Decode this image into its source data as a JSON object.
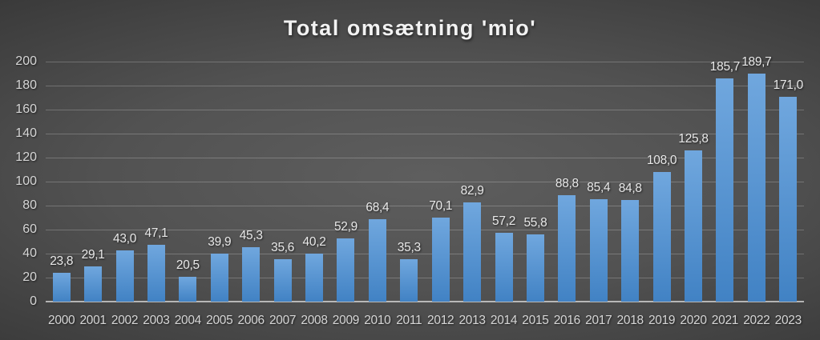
{
  "chart_data": {
    "type": "bar",
    "title": "Total omsætning 'mio'",
    "categories": [
      "2000",
      "2001",
      "2002",
      "2003",
      "2004",
      "2005",
      "2006",
      "2007",
      "2008",
      "2009",
      "2010",
      "2011",
      "2012",
      "2013",
      "2014",
      "2015",
      "2016",
      "2017",
      "2018",
      "2019",
      "2020",
      "2021",
      "2022",
      "2023"
    ],
    "values": [
      23.8,
      29.1,
      43.0,
      47.1,
      20.5,
      39.9,
      45.3,
      35.6,
      40.2,
      52.9,
      68.4,
      35.3,
      70.1,
      82.9,
      57.2,
      55.8,
      88.8,
      85.4,
      84.8,
      108.0,
      125.8,
      185.7,
      189.7,
      171.0
    ],
    "value_labels": [
      "23,8",
      "29,1",
      "43,0",
      "47,1",
      "20,5",
      "39,9",
      "45,3",
      "35,6",
      "40,2",
      "52,9",
      "68,4",
      "35,3",
      "70,1",
      "82,9",
      "57,2",
      "55,8",
      "88,8",
      "85,4",
      "84,8",
      "108,0",
      "125,8",
      "185,7",
      "189,7",
      "171,0"
    ],
    "xlabel": "",
    "ylabel": "",
    "ylim": [
      0,
      200
    ],
    "ytick_step": 20,
    "ytick_labels": [
      "0",
      "20",
      "40",
      "60",
      "80",
      "100",
      "120",
      "140",
      "160",
      "180",
      "200"
    ],
    "grid": true,
    "legend": "none",
    "colors": {
      "bar_gradient_top": "#70A7DE",
      "bar_gradient_bottom": "#4182C4",
      "background_center": "#5e5e5e",
      "background_edge": "#1a1a1a",
      "gridline": "rgba(255,255,255,0.22)",
      "axis_line": "rgba(255,255,255,0.6)",
      "tick_text": "#d6d6d6",
      "label_text": "#e9e9e9",
      "title_text": "#f2f2f2"
    }
  }
}
